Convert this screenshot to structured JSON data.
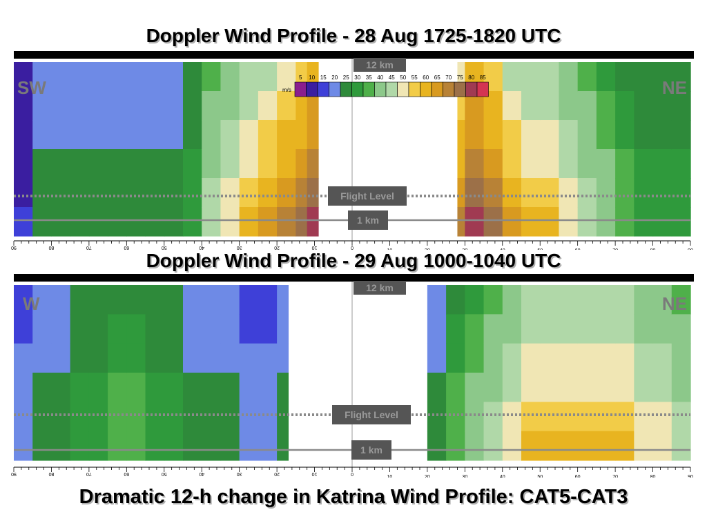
{
  "slide": {
    "title_top": "Doppler Wind Profile - 28 Aug 1725-1820 UTC",
    "title_bottom": "Doppler Wind Profile - 29 Aug 1000-1040 UTC",
    "caption": "Dramatic 12-h change in Katrina Wind Profile: CAT5-CAT3"
  },
  "colors": {
    "scale": [
      "#8a1e8e",
      "#3a1ea0",
      "#3e40d8",
      "#6e8ae6",
      "#2e8a3a",
      "#2f9a3c",
      "#4fb04a",
      "#8cc88a",
      "#b0d8a8",
      "#f0e6b4",
      "#f2cc48",
      "#e8b420",
      "#d89a20",
      "#b88236",
      "#9c7048",
      "#a03a52",
      "#d43452"
    ],
    "divider_bar": "#000000",
    "label_box": "#555555"
  },
  "chart_data": [
    {
      "type": "heatmap",
      "title": "Doppler Wind Profile - 28 Aug 1725-1820 UTC",
      "left_label": "SW",
      "right_label": "NE",
      "colorbar": {
        "unit": "m/s",
        "ticks": [
          "5",
          "10",
          "15",
          "20",
          "25",
          "30",
          "35",
          "40",
          "45",
          "50",
          "55",
          "60",
          "65",
          "70",
          "75",
          "80",
          "85"
        ]
      },
      "x_ticks_left": [
        "90",
        "80",
        "70",
        "60",
        "50",
        "40",
        "30",
        "20",
        "10",
        "0"
      ],
      "x_ticks_right": [
        "10",
        "20",
        "30",
        "40",
        "50",
        "60",
        "70",
        "80",
        "90"
      ],
      "xlim": [
        -90,
        90
      ],
      "annotations": {
        "top_level": "12 km",
        "flight_level": "Flight Level",
        "low_level": "1 km"
      },
      "columns_x": [
        -90,
        -85,
        -80,
        -75,
        -70,
        -65,
        -60,
        -55,
        -50,
        -45,
        -40,
        -35,
        -30,
        -25,
        -20,
        -15,
        -12
      ],
      "columns_y": [
        12,
        25,
        25,
        25,
        25,
        25,
        25,
        25,
        25,
        30,
        45,
        50,
        55,
        60,
        65,
        70,
        75
      ],
      "columns_x_right": [
        28,
        30,
        35,
        40,
        45,
        50,
        55,
        60,
        65,
        70,
        75,
        80,
        85,
        90
      ],
      "columns_y_right": [
        65,
        75,
        70,
        60,
        55,
        55,
        50,
        45,
        40,
        35,
        30,
        30,
        30,
        30
      ]
    },
    {
      "type": "heatmap",
      "title": "Doppler Wind Profile - 29 Aug 1000-1040 UTC",
      "left_label": "W",
      "right_label": "NE",
      "x_ticks_left": [
        "90",
        "80",
        "70",
        "60",
        "50",
        "40",
        "30",
        "20",
        "10",
        "0"
      ],
      "x_ticks_right": [
        "10",
        "20",
        "30",
        "40",
        "50",
        "60",
        "70",
        "80",
        "90"
      ],
      "xlim": [
        -90,
        90
      ],
      "annotations": {
        "top_level": "12 km",
        "flight_level": "Flight Level",
        "low_level": "1 km"
      },
      "columns_x": [
        -90,
        -85,
        -80,
        -75,
        -70,
        -65,
        -60,
        -55,
        -50,
        -45,
        -35,
        -30,
        -20
      ],
      "columns_y": [
        20,
        25,
        25,
        30,
        30,
        35,
        35,
        30,
        30,
        25,
        25,
        20,
        25
      ],
      "columns_x_right": [
        20,
        25,
        30,
        35,
        40,
        45,
        50,
        55,
        60,
        65,
        70,
        75,
        80,
        85,
        90
      ],
      "columns_y_right": [
        25,
        35,
        40,
        45,
        50,
        55,
        55,
        55,
        55,
        55,
        55,
        50,
        50,
        45,
        45
      ]
    }
  ]
}
